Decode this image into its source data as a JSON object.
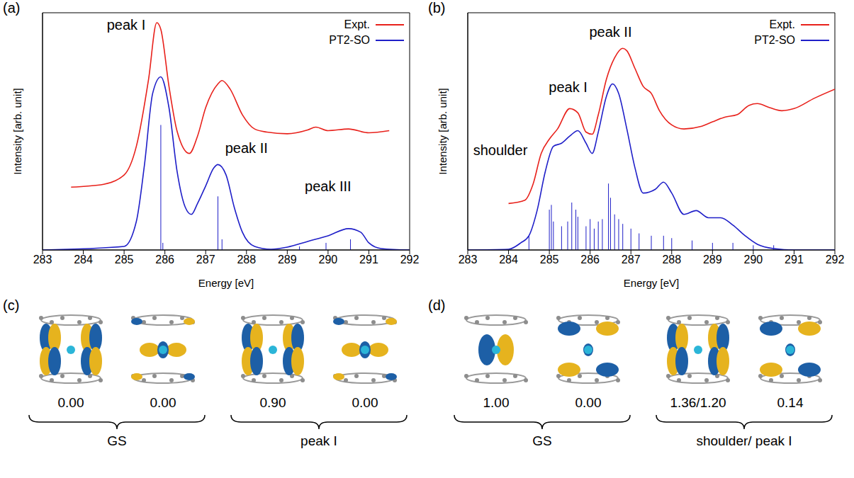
{
  "chart_data": [
    {
      "panel": "(a)",
      "type": "line",
      "x_label": "Energy [eV]",
      "y_label": "Intensity [arb. unit]",
      "xlim": [
        283,
        292
      ],
      "xticks": [
        283,
        284,
        285,
        286,
        287,
        288,
        289,
        290,
        291,
        292
      ],
      "ylim": [
        0,
        100
      ],
      "yticks": [],
      "tick_labels": "x",
      "legend": "upper right",
      "series": [
        {
          "name": "Expt.",
          "color": "#e8211b",
          "x": [
            283.7,
            284.5,
            285.0,
            285.3,
            285.6,
            285.8,
            285.9,
            286.1,
            286.3,
            286.6,
            286.8,
            287.0,
            287.3,
            287.4,
            287.6,
            287.9,
            288.2,
            288.5,
            289.0,
            289.5,
            289.7,
            290.0,
            290.5,
            291.0,
            291.5
          ],
          "values": [
            26.5,
            27.7,
            31.6,
            43.7,
            72,
            95.8,
            93,
            69,
            50,
            40.7,
            48,
            60,
            70,
            71.4,
            67.8,
            57,
            51,
            49.7,
            49,
            50.6,
            51.8,
            50.3,
            51,
            49.4,
            50.3
          ]
        },
        {
          "name": "PT2-SO",
          "color": "#1f1fc8",
          "x": [
            283,
            285.0,
            285.3,
            285.5,
            285.7,
            285.9,
            286.1,
            286.3,
            286.5,
            286.65,
            286.8,
            287.0,
            287.2,
            287.3,
            287.5,
            287.7,
            287.9,
            288.2,
            288.6,
            289.0,
            289.5,
            290.0,
            290.5,
            290.8,
            291.0,
            291.3,
            292
          ],
          "values": [
            0,
            1.5,
            12,
            36,
            66,
            73,
            60,
            33,
            18,
            15,
            19.6,
            27,
            34.6,
            36,
            31.6,
            18,
            7.5,
            1.5,
            0.3,
            1.2,
            3.6,
            6,
            9,
            7.5,
            3,
            0.6,
            0
          ],
          "sticks": {
            "x": [
              285.9,
              285.95,
              287.3,
              287.4,
              289.3,
              289.95,
              290.55
            ],
            "values": [
              52.7,
              3,
              22.6,
              4.5,
              1.5,
              3,
              4.5
            ]
          }
        }
      ],
      "annotations": [
        {
          "text": "peak I",
          "x": 285.05,
          "y": 95
        },
        {
          "text": "peak II",
          "x": 288.0,
          "y": 43
        },
        {
          "text": "peak III",
          "x": 290.0,
          "y": 27
        }
      ]
    },
    {
      "panel": "(b)",
      "type": "line",
      "x_label": "Energy [eV]",
      "y_label": "Intensity [arb. unit]",
      "xlim": [
        283,
        292
      ],
      "xticks": [
        283,
        284,
        285,
        286,
        287,
        288,
        289,
        290,
        291,
        292
      ],
      "ylim": [
        0,
        100
      ],
      "yticks": [],
      "tick_labels": "x",
      "legend": "upper right",
      "series": [
        {
          "name": "Expt.",
          "color": "#e8211b",
          "x": [
            284.0,
            284.4,
            284.6,
            284.8,
            285.0,
            285.2,
            285.5,
            285.7,
            285.9,
            286.05,
            286.2,
            286.4,
            286.6,
            286.8,
            286.9,
            287.1,
            287.3,
            287.5,
            287.7,
            288.0,
            288.3,
            288.7,
            289.0,
            289.3,
            289.6,
            289.9,
            290.1,
            290.4,
            290.7,
            291.0,
            291.5,
            292.0
          ],
          "values": [
            19.6,
            21,
            27.7,
            40.7,
            46.7,
            51,
            59.6,
            57.8,
            49.7,
            48.8,
            57,
            72,
            81,
            85,
            84,
            76.5,
            69,
            66,
            58.7,
            52.7,
            51,
            52,
            54,
            56,
            57,
            61,
            61.7,
            60,
            58.7,
            59.6,
            64,
            67.8
          ]
        },
        {
          "name": "PT2-SO",
          "color": "#1f1fc8",
          "x": [
            283,
            284.0,
            284.3,
            284.5,
            284.7,
            284.9,
            285.1,
            285.3,
            285.5,
            285.7,
            285.9,
            286.05,
            286.2,
            286.4,
            286.55,
            286.7,
            286.9,
            287.1,
            287.3,
            287.6,
            287.8,
            288.0,
            288.3,
            288.6,
            288.9,
            289.2,
            289.5,
            289.8,
            290.1,
            290.5,
            291.0,
            292
          ],
          "values": [
            0,
            0.3,
            3,
            6,
            16.6,
            33,
            43.7,
            45,
            48,
            50.3,
            45,
            40.7,
            49.7,
            64.8,
            70,
            66,
            51,
            34.6,
            24,
            25.6,
            28.6,
            24,
            15,
            16.6,
            13.6,
            13.6,
            10.5,
            6,
            2.4,
            0.6,
            0,
            0
          ],
          "sticks": {
            "x": [
              284.5,
              285.0,
              285.05,
              285.1,
              285.3,
              285.45,
              285.55,
              285.65,
              285.7,
              285.9,
              286.0,
              286.1,
              286.2,
              286.3,
              286.45,
              286.5,
              286.6,
              286.7,
              286.8,
              287.0,
              287.2,
              287.5,
              287.8,
              288.0,
              288.5,
              289.0,
              289.5,
              290.0,
              290.5
            ],
            "values": [
              6,
              17,
              19,
              12,
              10,
              12,
              20,
              17,
              14,
              10,
              13,
              9,
              12,
              13,
              28,
              22,
              15,
              13,
              11,
              9,
              7,
              6,
              6,
              5,
              4,
              3,
              3,
              2,
              2
            ]
          }
        }
      ],
      "annotations": [
        {
          "text": "shoulder",
          "x": 283.8,
          "y": 42
        },
        {
          "text": "peak I",
          "x": 285.46,
          "y": 68.7
        },
        {
          "text": "peak II",
          "x": 286.5,
          "y": 92
        }
      ]
    }
  ],
  "orbital_panels": [
    {
      "panel": "(c)",
      "groups": [
        {
          "label": "GS",
          "occupations": [
            "0.00",
            "0.00"
          ]
        },
        {
          "label": "peak I",
          "occupations": [
            "0.90",
            "0.00"
          ]
        }
      ]
    },
    {
      "panel": "(d)",
      "groups": [
        {
          "label": "GS",
          "occupations": [
            "1.00",
            "0.00"
          ]
        },
        {
          "label": "shoulder/ peak I",
          "occupations": [
            "1.36/1.20",
            "0.14"
          ]
        }
      ]
    }
  ]
}
